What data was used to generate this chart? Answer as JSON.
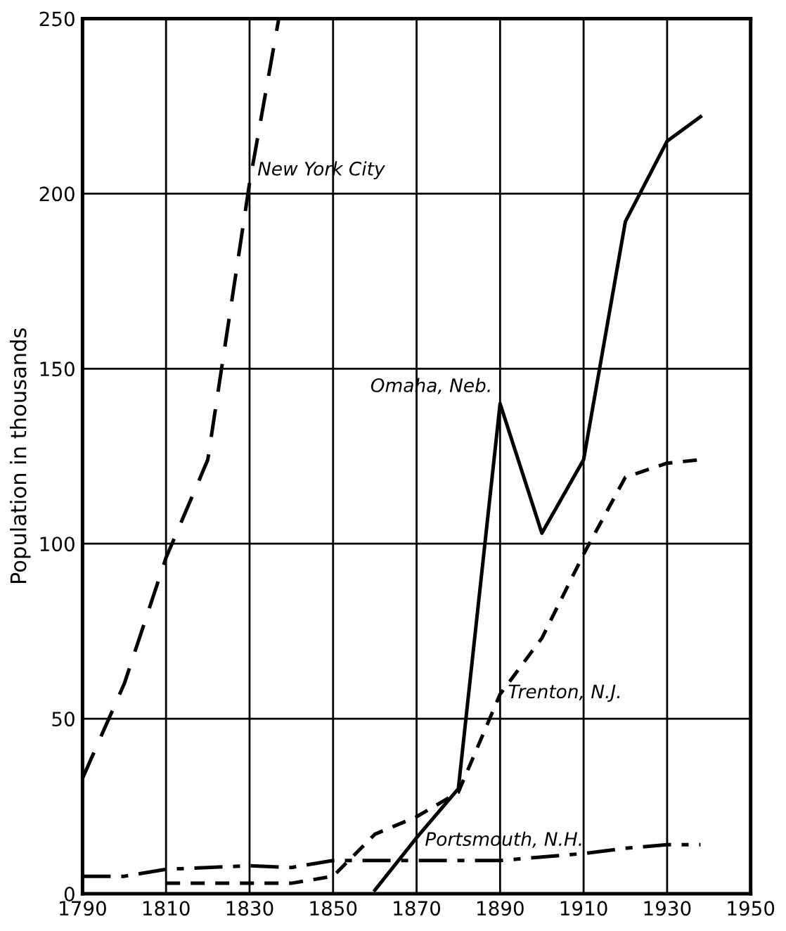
{
  "chart_data": {
    "type": "line",
    "ylabel": "Population in thousands",
    "xlim": [
      1790,
      1950
    ],
    "ylim": [
      0,
      250
    ],
    "xticks": [
      1790,
      1810,
      1830,
      1850,
      1870,
      1890,
      1910,
      1930,
      1950
    ],
    "yticks": [
      0,
      50,
      100,
      150,
      200,
      250
    ],
    "grid": true,
    "legend": false,
    "series": [
      {
        "name": "New York City",
        "color": "#000000",
        "line_style": "dashed",
        "x": [
          1790,
          1800,
          1810,
          1820,
          1830,
          1837
        ],
        "values": [
          33,
          60,
          96,
          124,
          203,
          250
        ]
      },
      {
        "name": "Omaha, Neb.",
        "color": "#000000",
        "line_style": "solid",
        "x": [
          1860,
          1870,
          1880,
          1890,
          1900,
          1910,
          1920,
          1930,
          1938
        ],
        "values": [
          1,
          16,
          30,
          140,
          103,
          124,
          192,
          215,
          222
        ]
      },
      {
        "name": "Trenton, N.J.",
        "color": "#000000",
        "line_style": "dotted",
        "x": [
          1810,
          1820,
          1830,
          1840,
          1850,
          1860,
          1870,
          1880,
          1890,
          1900,
          1910,
          1920,
          1930,
          1938
        ],
        "values": [
          3,
          3,
          3,
          3,
          5,
          17,
          22,
          29,
          57,
          73,
          97,
          119,
          123,
          124
        ]
      },
      {
        "name": "Portsmouth, N.H.",
        "color": "#000000",
        "line_style": "dashdot",
        "x": [
          1790,
          1800,
          1810,
          1820,
          1830,
          1840,
          1850,
          1860,
          1870,
          1880,
          1890,
          1900,
          1910,
          1920,
          1930,
          1938
        ],
        "values": [
          5,
          5,
          7,
          7.5,
          8,
          7.5,
          9.5,
          9.5,
          9.5,
          9.5,
          9.5,
          10.5,
          11.5,
          13,
          14,
          14
        ]
      }
    ]
  }
}
